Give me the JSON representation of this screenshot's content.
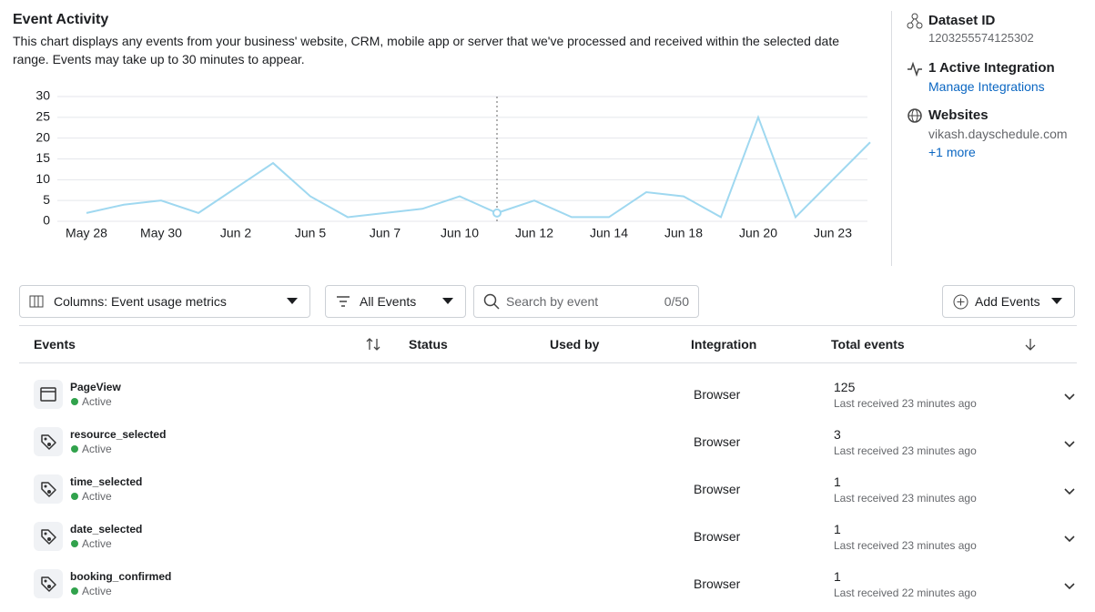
{
  "header": {
    "title": "Event Activity",
    "description": "This chart displays any events from your business' website, CRM, mobile app or server that we've processed and received within the selected date range. Events may take up to 30 minutes to appear."
  },
  "chart_data": {
    "type": "line",
    "categories": [
      "May 28",
      null,
      "May 30",
      null,
      "Jun 2",
      null,
      "Jun 5",
      null,
      "Jun 7",
      null,
      "Jun 10",
      null,
      "Jun 12",
      null,
      "Jun 14",
      null,
      "Jun 18",
      null,
      "Jun 20",
      null,
      "Jun 23",
      null
    ],
    "values": [
      2,
      4,
      5,
      2,
      8,
      14,
      6,
      1,
      2,
      3,
      6,
      2,
      5,
      1,
      1,
      7,
      6,
      1,
      25,
      1,
      10,
      19
    ],
    "color": "#9fd8f0",
    "ylim": [
      0,
      30
    ],
    "yticks": [
      0,
      5,
      10,
      15,
      20,
      25,
      30
    ],
    "grid": true
  },
  "sidebar": {
    "dataset_label": "Dataset ID",
    "dataset_id": "1203255574125302",
    "integration_label": "1 Active Integration",
    "integration_link": "Manage Integrations",
    "websites_label": "Websites",
    "website": "vikash.dayschedule.com",
    "websites_more": "+1 more"
  },
  "toolbar": {
    "columns": "Columns: Event usage metrics",
    "filter": "All Events",
    "search_placeholder": "Search by event",
    "search_count": "0/50",
    "add_button": "Add Events"
  },
  "table": {
    "columns": [
      "Events",
      "Status",
      "Used by",
      "Integration",
      "Total events"
    ],
    "rows": [
      {
        "name": "PageView",
        "status": "Active",
        "integration": "Browser",
        "total": 125,
        "last": "Last received 23 minutes ago"
      },
      {
        "name": "resource_selected",
        "status": "Active",
        "integration": "Browser",
        "total": 3,
        "last": "Last received 23 minutes ago"
      },
      {
        "name": "time_selected",
        "status": "Active",
        "integration": "Browser",
        "total": 1,
        "last": "Last received 23 minutes ago"
      },
      {
        "name": "date_selected",
        "status": "Active",
        "integration": "Browser",
        "total": 1,
        "last": "Last received 23 minutes ago"
      },
      {
        "name": "booking_confirmed",
        "status": "Active",
        "integration": "Browser",
        "total": 1,
        "last": "Last received 22 minutes ago"
      }
    ]
  }
}
